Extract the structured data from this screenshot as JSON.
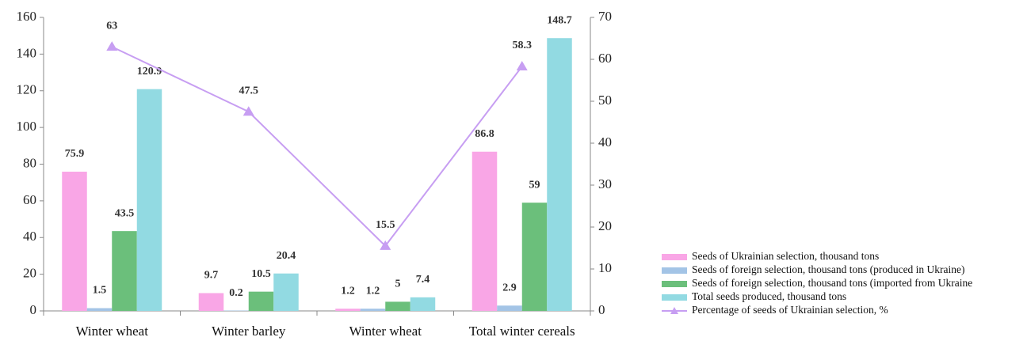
{
  "chart_data": {
    "type": "bar",
    "categories": [
      "Winter wheat",
      "Winter barley",
      "Winter wheat",
      "Total winter cereals"
    ],
    "series": [
      {
        "name": "Seeds of Ukrainian selection, thousand tons",
        "color": "#f9a6e6",
        "values": [
          75.9,
          9.7,
          1.2,
          86.8
        ]
      },
      {
        "name": "Seeds of foreign selection, thousand tons (produced in Ukraine)",
        "color": "#a3c4e6",
        "values": [
          1.5,
          0.2,
          1.2,
          2.9
        ]
      },
      {
        "name": "Seeds of foreign selection, thousand tons (imported from Ukraine",
        "color": "#6bbf7b",
        "values": [
          43.5,
          10.5,
          5,
          59
        ]
      },
      {
        "name": "Total seeds produced, thousand tons",
        "color": "#92dae2",
        "values": [
          120.9,
          20.4,
          7.4,
          148.7
        ]
      },
      {
        "name": "Percentage of seeds of Ukrainian selection, %",
        "color": "#c79ef2",
        "values": [
          63,
          47.5,
          15.5,
          58.3
        ],
        "axis": "y2",
        "type": "line"
      }
    ],
    "ylim": [
      0,
      160
    ],
    "yticks": [
      0,
      20,
      40,
      60,
      80,
      100,
      120,
      140,
      160
    ],
    "y2lim": [
      0,
      70
    ],
    "y2ticks": [
      0,
      10,
      20,
      30,
      40,
      50,
      60,
      70
    ],
    "grid": false,
    "legend": "right"
  }
}
